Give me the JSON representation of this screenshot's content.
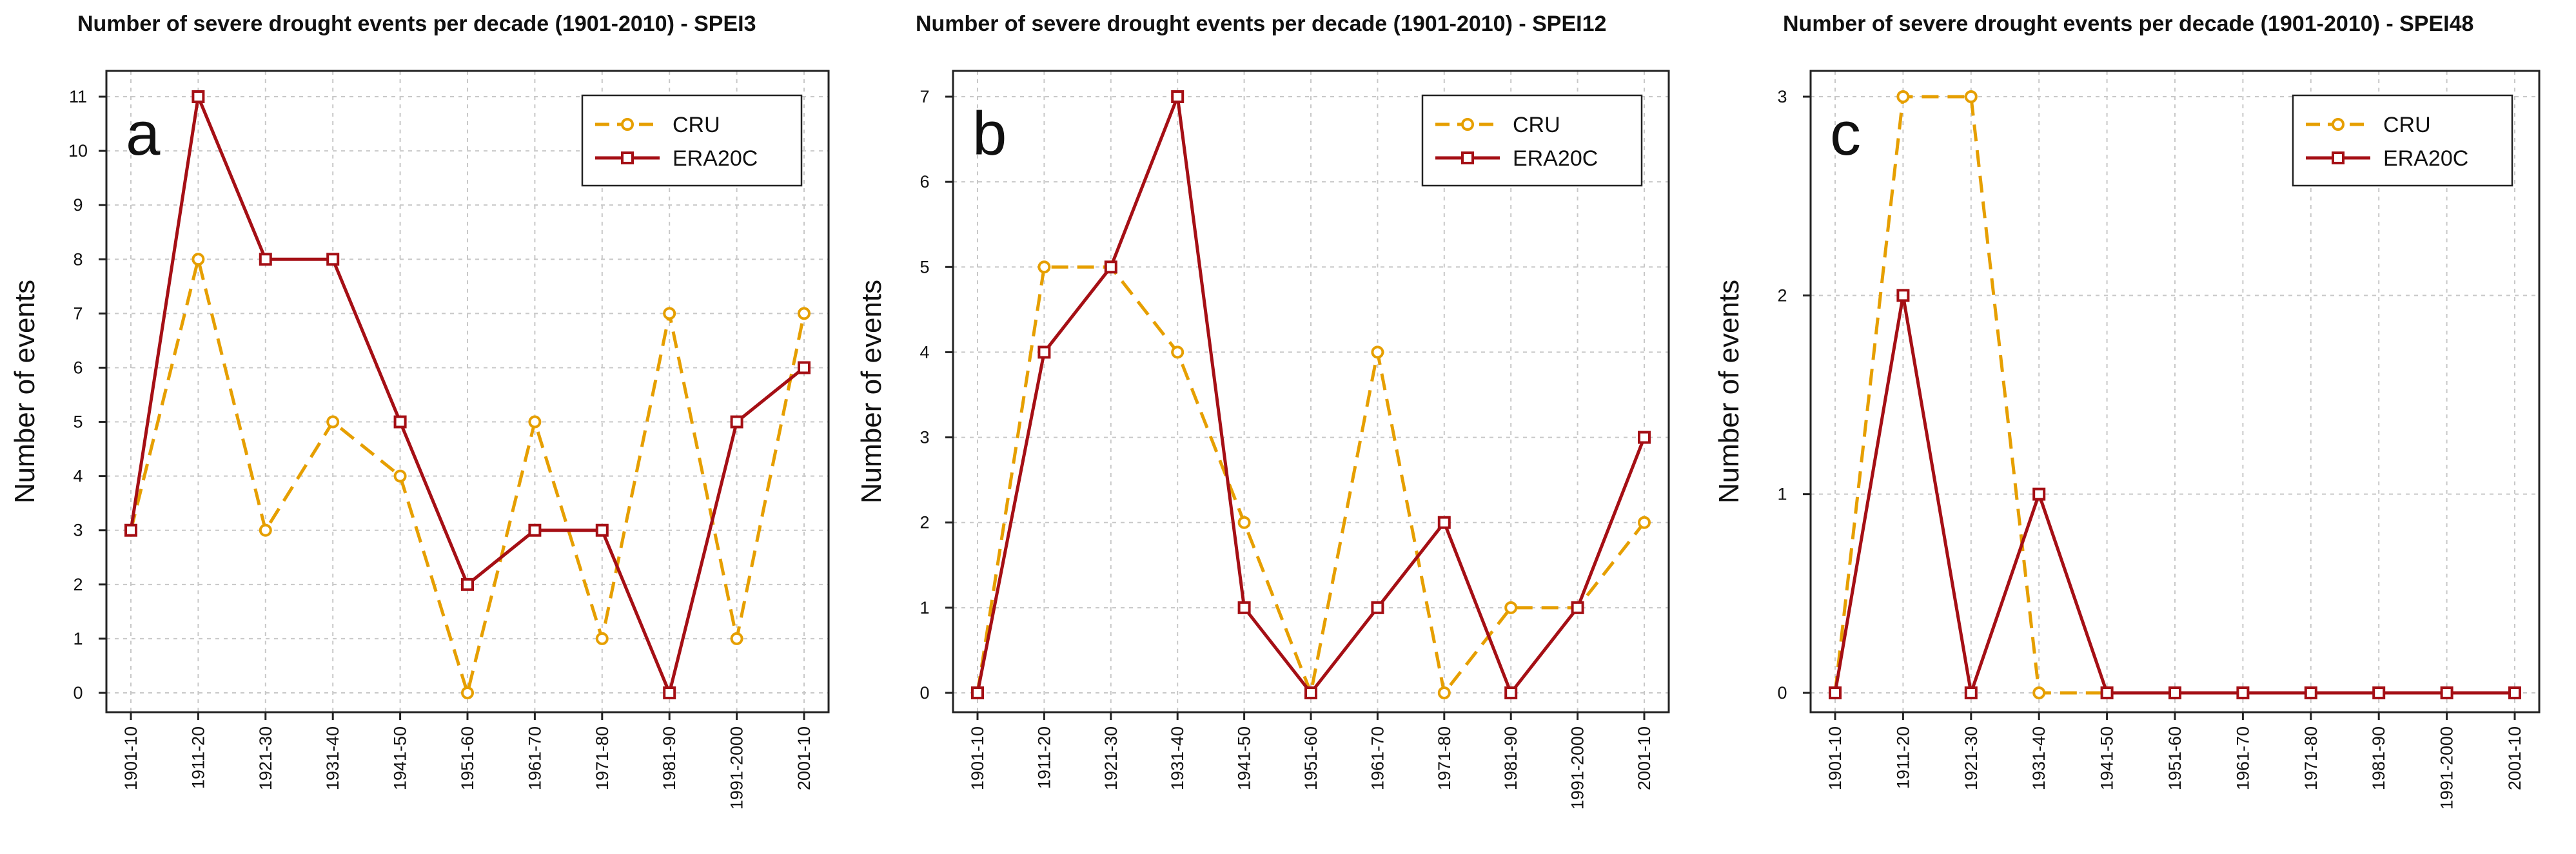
{
  "figure_title": "Number of severe drought events per decade (1901-2010)",
  "colors": {
    "cru": "#E69F00",
    "era20c": "#A50F15"
  },
  "chart_data": [
    {
      "type": "line",
      "panel_label": "a",
      "title": "Number of severe drought events per decade (1901-2010) - SPEI3",
      "xlabel": "",
      "ylabel": "Number of events",
      "categories": [
        "1901-10",
        "1911-20",
        "1921-30",
        "1931-40",
        "1941-50",
        "1951-60",
        "1961-70",
        "1971-80",
        "1981-90",
        "1991-2000",
        "2001-10"
      ],
      "ylim": [
        0,
        11
      ],
      "yticks": [
        0,
        1,
        2,
        3,
        4,
        5,
        6,
        7,
        8,
        9,
        10,
        11
      ],
      "grid": true,
      "legend_position": "top-right",
      "series": [
        {
          "name": "CRU",
          "style": "dashed",
          "marker": "circle",
          "values": [
            3,
            8,
            3,
            5,
            4,
            0,
            5,
            1,
            7,
            1,
            7
          ]
        },
        {
          "name": "ERA20C",
          "style": "solid",
          "marker": "square",
          "values": [
            3,
            11,
            8,
            8,
            5,
            2,
            3,
            3,
            0,
            5,
            6
          ]
        }
      ]
    },
    {
      "type": "line",
      "panel_label": "b",
      "title": "Number of severe drought events per decade (1901-2010) - SPEI12",
      "xlabel": "",
      "ylabel": "Number of events",
      "categories": [
        "1901-10",
        "1911-20",
        "1921-30",
        "1931-40",
        "1941-50",
        "1951-60",
        "1961-70",
        "1971-80",
        "1981-90",
        "1991-2000",
        "2001-10"
      ],
      "ylim": [
        0,
        7
      ],
      "yticks": [
        0,
        1,
        2,
        3,
        4,
        5,
        6,
        7
      ],
      "grid": true,
      "legend_position": "top-right",
      "series": [
        {
          "name": "CRU",
          "style": "dashed",
          "marker": "circle",
          "values": [
            0,
            5,
            5,
            4,
            2,
            0,
            4,
            0,
            1,
            1,
            2
          ]
        },
        {
          "name": "ERA20C",
          "style": "solid",
          "marker": "square",
          "values": [
            0,
            4,
            5,
            7,
            1,
            0,
            1,
            2,
            0,
            1,
            3
          ]
        }
      ]
    },
    {
      "type": "line",
      "panel_label": "c",
      "title": "Number of severe drought events per decade (1901-2010) - SPEI48",
      "xlabel": "",
      "ylabel": "Number of events",
      "categories": [
        "1901-10",
        "1911-20",
        "1921-30",
        "1931-40",
        "1941-50",
        "1951-60",
        "1961-70",
        "1971-80",
        "1981-90",
        "1991-2000",
        "2001-10"
      ],
      "ylim": [
        0,
        3
      ],
      "yticks": [
        0,
        1,
        2,
        3
      ],
      "grid": true,
      "legend_position": "top-right",
      "series": [
        {
          "name": "CRU",
          "style": "dashed",
          "marker": "circle",
          "values": [
            0,
            3,
            3,
            0,
            0,
            0,
            0,
            0,
            0,
            0,
            0
          ]
        },
        {
          "name": "ERA20C",
          "style": "solid",
          "marker": "square",
          "values": [
            0,
            2,
            0,
            1,
            0,
            0,
            0,
            0,
            0,
            0,
            0
          ]
        }
      ]
    }
  ]
}
